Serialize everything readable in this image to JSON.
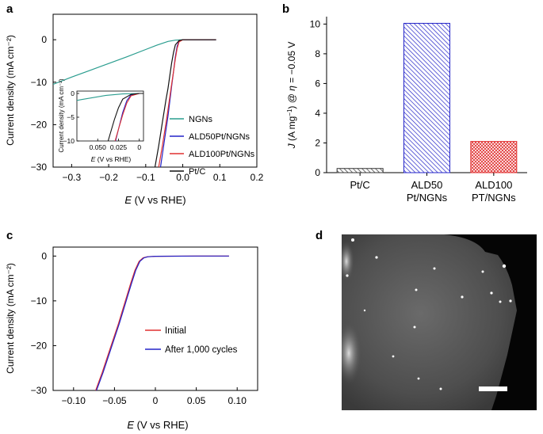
{
  "panels": {
    "a": {
      "letter": "a"
    },
    "b": {
      "letter": "b"
    },
    "c": {
      "letter": "c"
    },
    "d": {
      "letter": "d"
    }
  },
  "chart_data": [
    {
      "id": "a",
      "type": "line",
      "xlabel_italic": "E",
      "xlabel_rest": " (V vs RHE)",
      "ylabel": "Current density (mA cm⁻²)",
      "xlim": [
        -0.35,
        0.2
      ],
      "ylim": [
        -30,
        6
      ],
      "xticks": [
        -0.3,
        -0.2,
        -0.1,
        0.0,
        0.1,
        0.2
      ],
      "xtick_labels": [
        "−0.3",
        "−0.2",
        "−0.1",
        "0.0",
        "0.1",
        "0.2"
      ],
      "yticks": [
        0,
        -10,
        -20,
        -30
      ],
      "ytick_labels": [
        "0",
        "−10",
        "−20",
        "−30"
      ],
      "legend_position": "right",
      "series": [
        {
          "name": "NGNs",
          "color": "#2a9d8f",
          "x": [
            -0.35,
            -0.3,
            -0.25,
            -0.2,
            -0.15,
            -0.1,
            -0.07,
            -0.04,
            -0.02,
            0.0,
            0.05,
            0.09
          ],
          "y": [
            -10.5,
            -8.8,
            -7.2,
            -5.6,
            -4.0,
            -2.3,
            -1.3,
            -0.4,
            -0.1,
            0.0,
            0.0,
            0.0
          ]
        },
        {
          "name": "ALD50Pt/NGNs",
          "color": "#2323c8",
          "x": [
            -0.06,
            -0.05,
            -0.04,
            -0.035,
            -0.03,
            -0.025,
            -0.02,
            -0.015,
            -0.01,
            0.0,
            0.05,
            0.09
          ],
          "y": [
            -30,
            -24,
            -18,
            -14.5,
            -11,
            -7.5,
            -4,
            -1.5,
            -0.3,
            0.0,
            0.0,
            0.0
          ]
        },
        {
          "name": "ALD100Pt/NGNs",
          "color": "#e03030",
          "x": [
            -0.065,
            -0.055,
            -0.045,
            -0.04,
            -0.035,
            -0.03,
            -0.025,
            -0.02,
            -0.015,
            -0.01,
            0.0,
            0.05,
            0.09
          ],
          "y": [
            -30,
            -25,
            -19.5,
            -16.5,
            -13.5,
            -10.5,
            -7.5,
            -4.5,
            -2,
            -0.5,
            0.0,
            0.0,
            0.0
          ]
        },
        {
          "name": "Pt/C",
          "color": "#111111",
          "x": [
            -0.075,
            -0.065,
            -0.055,
            -0.045,
            -0.04,
            -0.035,
            -0.03,
            -0.025,
            -0.02,
            -0.01,
            0.0,
            0.05,
            0.09
          ],
          "y": [
            -30,
            -25,
            -19.5,
            -14,
            -11.5,
            -8.5,
            -5.5,
            -3,
            -1.2,
            -0.2,
            0.0,
            0.0,
            0.0
          ]
        }
      ],
      "inset": {
        "xlabel_italic": "E",
        "xlabel_rest": " (V vs RHE)",
        "ylabel": "Current density (mA cm⁻²)",
        "xlim": [
          -0.075,
          0.005
        ],
        "ylim": [
          -10,
          0.5
        ],
        "xticks": [
          -0.05,
          -0.025,
          0.0
        ],
        "xtick_labels": [
          "0.050",
          "0.025",
          "0"
        ],
        "yticks": [
          0,
          -5,
          -10
        ],
        "ytick_labels": [
          "0",
          "−5",
          "−10"
        ]
      }
    },
    {
      "id": "b",
      "type": "bar",
      "ylabel_parts": [
        "J",
        " (A mg",
        "−1",
        ") @ ",
        "η",
        " = −0.05 V"
      ],
      "ylim": [
        0,
        10.5
      ],
      "yticks": [
        0,
        2,
        4,
        6,
        8,
        10
      ],
      "ytick_labels": [
        "0",
        "2",
        "4",
        "6",
        "8",
        "10"
      ],
      "categories": [
        [
          "Pt/C"
        ],
        [
          "ALD50",
          "Pt/NGNs"
        ],
        [
          "ALD100",
          "PT/NGNs"
        ]
      ],
      "values": [
        0.28,
        10.05,
        2.1
      ],
      "colors": [
        "#333333",
        "#2323c8",
        "#e03030"
      ],
      "hatch": [
        "diagonal-left",
        "diagonal-left",
        "cross"
      ]
    },
    {
      "id": "c",
      "type": "line",
      "xlabel_italic": "E",
      "xlabel_rest": " (V vs RHE)",
      "ylabel": "Current density (mA cm⁻²)",
      "xlim": [
        -0.125,
        0.125
      ],
      "ylim": [
        -30,
        2
      ],
      "xticks": [
        -0.1,
        -0.05,
        0.0,
        0.05,
        0.1
      ],
      "xtick_labels": [
        "−0.10",
        "−0.05",
        "0",
        "0.05",
        "0.10"
      ],
      "yticks": [
        0,
        -10,
        -20,
        -30
      ],
      "ytick_labels": [
        "0",
        "−10",
        "−20",
        "−30"
      ],
      "legend_position": "bottom-right",
      "series": [
        {
          "name": "Initial",
          "color": "#e03030",
          "x": [
            -0.073,
            -0.065,
            -0.055,
            -0.045,
            -0.04,
            -0.035,
            -0.03,
            -0.025,
            -0.02,
            -0.015,
            -0.01,
            0.0,
            0.05,
            0.09
          ],
          "y": [
            -30,
            -26,
            -20.5,
            -15,
            -12,
            -9,
            -6,
            -3.2,
            -1.2,
            -0.4,
            -0.15,
            -0.05,
            0.0,
            0.0
          ]
        },
        {
          "name": "After 1,000 cycles",
          "color": "#2323c8",
          "x": [
            -0.072,
            -0.064,
            -0.054,
            -0.044,
            -0.039,
            -0.034,
            -0.029,
            -0.024,
            -0.019,
            -0.014,
            -0.009,
            0.0,
            0.05,
            0.09
          ],
          "y": [
            -30,
            -26,
            -20.5,
            -15,
            -12,
            -9,
            -6,
            -3.2,
            -1.2,
            -0.4,
            -0.15,
            -0.05,
            0.0,
            0.0
          ]
        }
      ]
    }
  ],
  "micrograph": {
    "description_colors": {
      "background": "#000000",
      "sheet": "#5a5a5a",
      "particle": "#ffffff",
      "scalebar": "#ffffff"
    }
  }
}
